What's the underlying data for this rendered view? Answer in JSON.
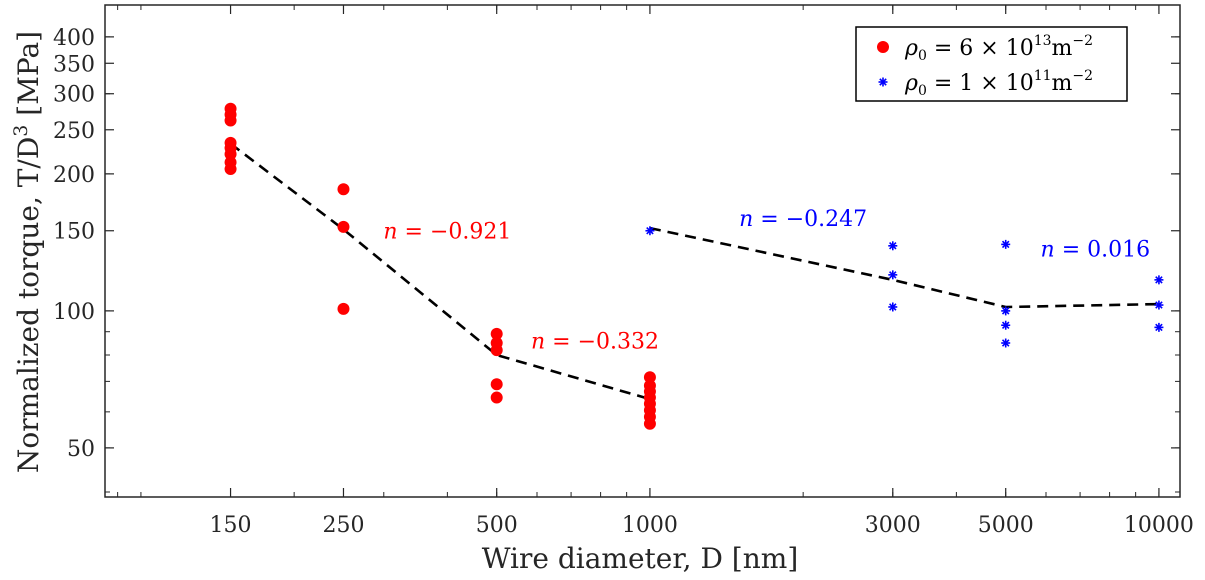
{
  "chart_data": {
    "type": "scatter",
    "xlabel": "Wire diameter, D [nm]",
    "ylabel_main": "Normalized torque, T/D",
    "ylabel_sup": "3",
    "ylabel_unit": " [MPa]",
    "x_scale": "log",
    "y_scale": "log",
    "xlim": [
      85,
      11000
    ],
    "ylim": [
      39,
      470
    ],
    "x_ticks": [
      150,
      250,
      500,
      1000,
      3000,
      5000,
      10000
    ],
    "x_tick_labels": [
      "150",
      "250",
      "500",
      "1000",
      "3000",
      "5000",
      "10000"
    ],
    "y_ticks": [
      50,
      100,
      150,
      200,
      250,
      300,
      350,
      400
    ],
    "y_tick_labels": [
      "50",
      "100",
      "150",
      "200",
      "250",
      "300",
      "350",
      "400"
    ],
    "grid": false,
    "legend_position": "top-right",
    "colors": {
      "series1": "#ff0000",
      "series2": "#0000ff",
      "fit": "#000000"
    },
    "series": [
      {
        "name_prefix": "ρ",
        "name_sub": "0",
        "name_mid": " = 6 × 10",
        "name_exp": "13",
        "name_unit": "m",
        "name_unit_exp": "−2",
        "marker": "circle",
        "color": "#ff0000",
        "points": [
          [
            150,
            278
          ],
          [
            150,
            270
          ],
          [
            150,
            262
          ],
          [
            150,
            234
          ],
          [
            150,
            228
          ],
          [
            150,
            221
          ],
          [
            150,
            212
          ],
          [
            150,
            205
          ],
          [
            250,
            185
          ],
          [
            250,
            153
          ],
          [
            250,
            101
          ],
          [
            500,
            89
          ],
          [
            500,
            85
          ],
          [
            500,
            82
          ],
          [
            500,
            69
          ],
          [
            500,
            64.5
          ],
          [
            1000,
            71.5
          ],
          [
            1000,
            68.5
          ],
          [
            1000,
            66.5
          ],
          [
            1000,
            64.5
          ],
          [
            1000,
            62.5
          ],
          [
            1000,
            60.5
          ],
          [
            1000,
            58.5
          ],
          [
            1000,
            56.5
          ]
        ]
      },
      {
        "name_prefix": "ρ",
        "name_sub": "0",
        "name_mid": " = 1 × 10",
        "name_exp": "11",
        "name_unit": "m",
        "name_unit_exp": "−2",
        "marker": "asterisk",
        "color": "#0000ff",
        "points": [
          [
            1000,
            150
          ],
          [
            3000,
            139
          ],
          [
            3000,
            120
          ],
          [
            3000,
            102
          ],
          [
            5000,
            140
          ],
          [
            5000,
            100
          ],
          [
            5000,
            93
          ],
          [
            5000,
            85
          ],
          [
            10000,
            117
          ],
          [
            10000,
            103
          ],
          [
            10000,
            92
          ]
        ]
      }
    ],
    "fit_lines": [
      {
        "points": [
          [
            150,
            233
          ],
          [
            250,
            151
          ],
          [
            500,
            80
          ],
          [
            1000,
            64
          ]
        ]
      },
      {
        "points": [
          [
            1000,
            152
          ],
          [
            3000,
            117
          ],
          [
            5000,
            102
          ],
          [
            10000,
            103.5
          ]
        ]
      }
    ],
    "annotations": [
      {
        "text": "n = −0.921",
        "x": 400,
        "y": 150,
        "color": "#ff0000"
      },
      {
        "text": "n = −0.332",
        "x": 780,
        "y": 86,
        "color": "#ff0000"
      },
      {
        "text": "n = −0.247",
        "x": 2000,
        "y": 160,
        "color": "#0000ff"
      },
      {
        "text": "n = 0.016",
        "x": 7500,
        "y": 137,
        "color": "#0000ff"
      }
    ]
  }
}
